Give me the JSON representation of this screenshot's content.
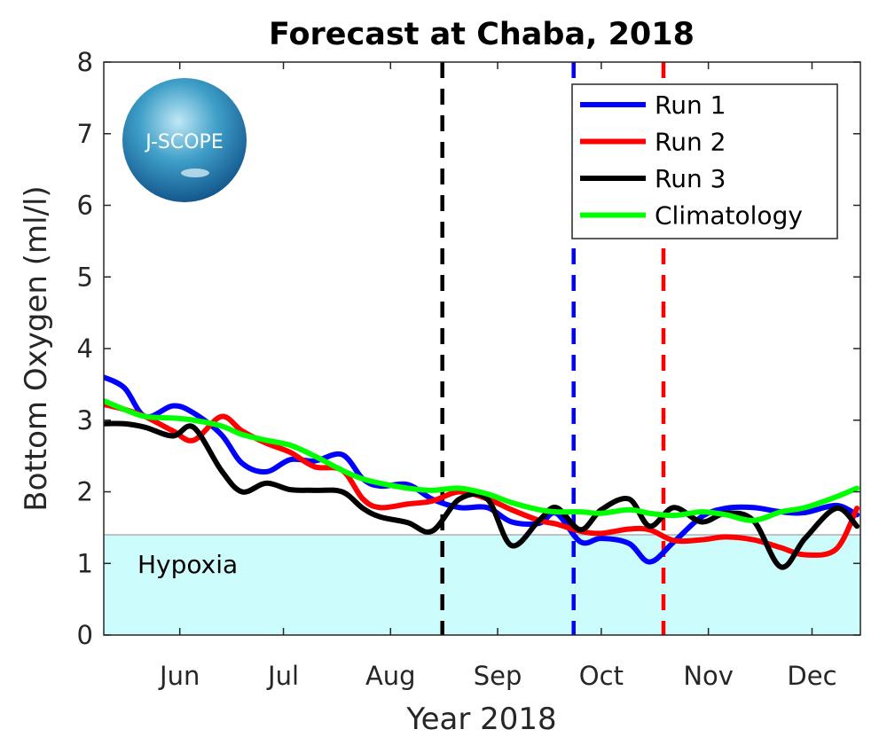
{
  "chart_data": {
    "type": "line",
    "title": "Forecast at Chaba, 2018",
    "xlabel": "Year 2018",
    "ylabel": "Bottom Oxygen (ml/l)",
    "xlim": [
      "2018-05-10",
      "2018-12-15"
    ],
    "ylim": [
      0,
      8
    ],
    "yticks": [
      0,
      1,
      2,
      3,
      4,
      5,
      6,
      7,
      8
    ],
    "xticks": [
      {
        "date": "2018-06-01",
        "label": "Jun"
      },
      {
        "date": "2018-07-01",
        "label": "Jul"
      },
      {
        "date": "2018-08-01",
        "label": "Aug"
      },
      {
        "date": "2018-09-01",
        "label": "Sep"
      },
      {
        "date": "2018-10-01",
        "label": "Oct"
      },
      {
        "date": "2018-11-01",
        "label": "Nov"
      },
      {
        "date": "2018-12-01",
        "label": "Dec"
      }
    ],
    "grid": false,
    "legend_position": "top-right",
    "hypoxia": {
      "label": "Hypoxia",
      "threshold": 1.4,
      "color": "#ccfcfc"
    },
    "x": [
      "2018-05-10",
      "2018-05-16",
      "2018-05-22",
      "2018-05-30",
      "2018-06-05",
      "2018-06-13",
      "2018-06-19",
      "2018-06-26",
      "2018-07-03",
      "2018-07-10",
      "2018-07-18",
      "2018-07-24",
      "2018-07-29",
      "2018-08-06",
      "2018-08-13",
      "2018-08-21",
      "2018-08-29",
      "2018-09-05",
      "2018-09-13",
      "2018-09-18",
      "2018-09-25",
      "2018-10-01",
      "2018-10-09",
      "2018-10-15",
      "2018-10-22",
      "2018-10-30",
      "2018-11-06",
      "2018-11-14",
      "2018-11-22",
      "2018-11-29",
      "2018-12-08",
      "2018-12-14"
    ],
    "series": [
      {
        "name": "Run 1",
        "color": "#0000ff",
        "values": [
          3.6,
          3.45,
          3.05,
          3.2,
          3.1,
          2.8,
          2.4,
          2.28,
          2.45,
          2.43,
          2.52,
          2.18,
          2.08,
          2.1,
          1.9,
          1.78,
          1.78,
          1.58,
          1.56,
          1.7,
          1.3,
          1.35,
          1.28,
          1.02,
          1.3,
          1.65,
          1.77,
          1.78,
          1.72,
          1.71,
          1.81,
          1.68
        ]
      },
      {
        "name": "Run 2",
        "color": "#ff0000",
        "values": [
          3.22,
          3.15,
          3.05,
          2.85,
          2.72,
          3.05,
          2.85,
          2.68,
          2.55,
          2.35,
          2.3,
          1.9,
          1.78,
          1.83,
          1.87,
          2.0,
          1.9,
          1.75,
          1.6,
          1.55,
          1.45,
          1.42,
          1.48,
          1.47,
          1.32,
          1.33,
          1.37,
          1.33,
          1.22,
          1.12,
          1.2,
          1.77
        ]
      },
      {
        "name": "Run 3",
        "color": "#000000",
        "values": [
          2.95,
          2.95,
          2.9,
          2.78,
          2.9,
          2.3,
          2.0,
          2.12,
          2.03,
          2.02,
          2.0,
          1.77,
          1.65,
          1.57,
          1.45,
          1.9,
          1.9,
          1.25,
          1.6,
          1.78,
          1.47,
          1.75,
          1.9,
          1.52,
          1.78,
          1.58,
          1.7,
          1.6,
          0.95,
          1.35,
          1.77,
          1.52
        ]
      },
      {
        "name": "Climatology",
        "color": "#00ff00",
        "values": [
          3.27,
          3.15,
          3.05,
          3.03,
          3.0,
          2.92,
          2.8,
          2.72,
          2.65,
          2.5,
          2.3,
          2.18,
          2.12,
          2.05,
          2.02,
          2.05,
          1.97,
          1.85,
          1.75,
          1.72,
          1.72,
          1.7,
          1.75,
          1.7,
          1.67,
          1.72,
          1.68,
          1.6,
          1.72,
          1.78,
          1.93,
          2.05
        ]
      }
    ],
    "vlines": [
      {
        "date": "2018-08-16",
        "color": "#000000",
        "style": "dashed"
      },
      {
        "date": "2018-09-23",
        "color": "#0000ff",
        "style": "dashed"
      },
      {
        "date": "2018-10-19",
        "color": "#ff0000",
        "style": "dashed"
      }
    ],
    "logo": {
      "text": "J-SCOPE"
    }
  }
}
